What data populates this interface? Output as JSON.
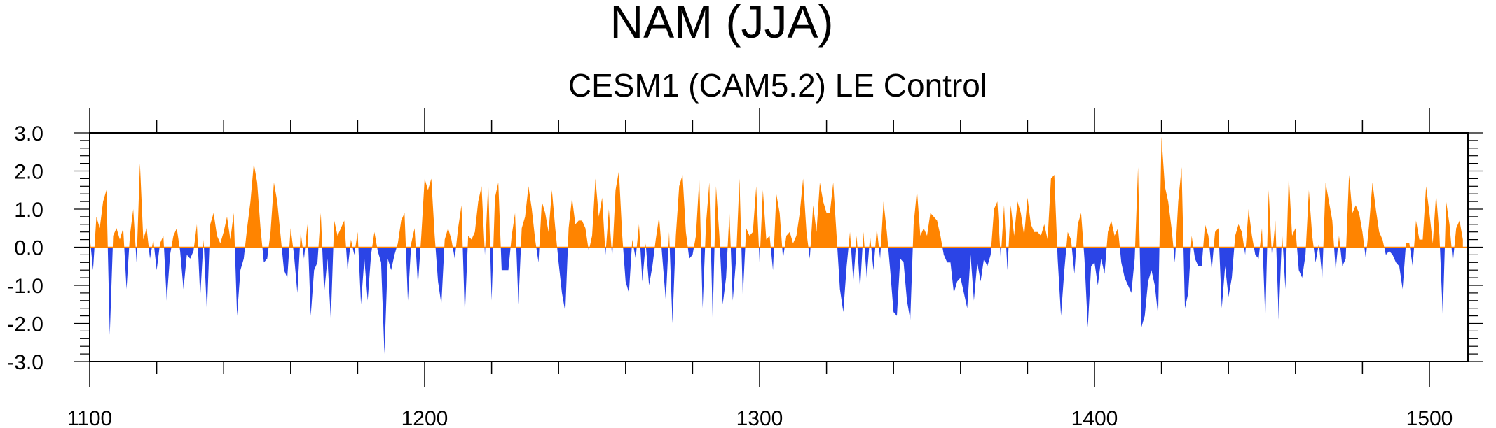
{
  "chart_data": {
    "type": "area",
    "title": "NAM (JJA)",
    "subtitle": "CESM1 (CAM5.2) LE Control",
    "xlabel": "",
    "ylabel": "",
    "xlim": [
      1100,
      1510
    ],
    "ylim": [
      -3.0,
      3.0
    ],
    "x_ticks": [
      "1100",
      "1200",
      "1300",
      "1400",
      "1500"
    ],
    "y_ticks": [
      "3.0",
      "2.0",
      "1.0",
      "0.0",
      "-1.0",
      "-2.0",
      "-3.0"
    ],
    "grid": false,
    "baseline": 0.0,
    "colors": {
      "positive": "#ff8400",
      "negative": "#2b44e6"
    },
    "series": [
      {
        "x_start": 1100,
        "x_step": 1,
        "values": [
          0.3,
          -0.6,
          0.8,
          0.5,
          1.2,
          1.5,
          -2.3,
          0.3,
          0.5,
          0.2,
          0.5,
          -1.1,
          0.3,
          1.0,
          -0.4,
          2.2,
          0.2,
          0.5,
          -0.3,
          0.2,
          -0.6,
          0.1,
          0.3,
          -1.4,
          -0.2,
          0.3,
          0.5,
          -0.1,
          -1.1,
          -0.2,
          -0.3,
          -0.1,
          0.6,
          -1.3,
          0.2,
          -1.7,
          0.6,
          0.9,
          0.3,
          0.1,
          0.4,
          0.8,
          0.2,
          0.9,
          -1.8,
          -0.6,
          -0.3,
          0.5,
          1.2,
          2.2,
          1.7,
          0.5,
          -0.4,
          -0.3,
          0.4,
          1.7,
          1.2,
          0.3,
          -0.6,
          -0.8,
          0.5,
          -0.2,
          -1.2,
          0.4,
          -0.3,
          0.6,
          -1.8,
          -0.6,
          -0.4,
          0.9,
          -1.2,
          -0.3,
          -1.9,
          0.7,
          0.3,
          0.5,
          0.7,
          -0.6,
          0.2,
          -0.2,
          0.4,
          -1.5,
          -0.3,
          -1.4,
          -0.2,
          0.4,
          -0.1,
          -0.4,
          -2.8,
          -0.3,
          -0.6,
          -0.2,
          0.1,
          0.7,
          0.9,
          -1.4,
          0.1,
          0.5,
          -1.0,
          0.3,
          1.8,
          1.5,
          1.8,
          0.3,
          -0.9,
          -1.5,
          0.2,
          0.5,
          0.2,
          -0.3,
          0.5,
          1.1,
          -1.8,
          0.3,
          0.2,
          0.4,
          1.2,
          1.6,
          -0.2,
          1.7,
          -1.4,
          1.3,
          1.7,
          -0.6,
          -0.6,
          -0.6,
          0.3,
          0.9,
          -1.5,
          0.5,
          0.8,
          1.6,
          1.0,
          0.2,
          -0.4,
          1.2,
          0.9,
          0.4,
          1.5,
          0.5,
          -0.4,
          -1.2,
          -1.7,
          0.5,
          1.3,
          0.6,
          0.7,
          0.7,
          0.5,
          -0.1,
          0.3,
          1.8,
          0.8,
          1.3,
          -0.2,
          1.0,
          -0.3,
          1.5,
          2.0,
          0.3,
          -0.9,
          -1.2,
          0.2,
          -0.3,
          0.6,
          -0.9,
          0.1,
          -1.0,
          -0.5,
          0.2,
          0.8,
          -0.3,
          -1.4,
          0.4,
          -2.0,
          0.3,
          1.6,
          1.9,
          0.4,
          -0.3,
          -0.2,
          0.3,
          1.8,
          -1.6,
          0.6,
          1.7,
          -1.9,
          1.6,
          0.3,
          -1.5,
          -0.8,
          0.9,
          -1.4,
          -0.3,
          1.8,
          -1.3,
          0.5,
          0.3,
          0.4,
          1.6,
          -0.4,
          1.5,
          0.2,
          0.3,
          -0.6,
          1.4,
          0.9,
          -0.3,
          0.3,
          0.4,
          0.1,
          0.3,
          0.9,
          1.8,
          0.4,
          -0.3,
          1.1,
          0.4,
          1.7,
          1.2,
          0.9,
          0.9,
          1.7,
          0.3,
          -1.1,
          -1.7,
          -0.5,
          0.4,
          -0.9,
          0.3,
          -1.1,
          0.4,
          -0.8,
          0.3,
          -0.6,
          0.5,
          -0.3,
          1.2,
          0.4,
          -0.6,
          -1.7,
          -1.8,
          -0.3,
          -0.4,
          -1.4,
          -1.9,
          0.6,
          1.5,
          0.3,
          0.5,
          0.3,
          0.9,
          0.8,
          0.7,
          0.3,
          -0.2,
          -0.4,
          -0.4,
          -1.2,
          -0.9,
          -0.8,
          -1.2,
          -1.6,
          -0.2,
          -1.4,
          -0.4,
          -0.9,
          -0.3,
          -0.5,
          -0.2,
          1.0,
          1.2,
          -0.3,
          1.1,
          -0.6,
          1.1,
          0.3,
          1.2,
          0.9,
          0.3,
          1.3,
          0.6,
          0.4,
          0.4,
          0.3,
          0.6,
          0.2,
          1.8,
          1.9,
          -0.3,
          -1.8,
          -0.6,
          0.4,
          0.2,
          -0.7,
          0.6,
          0.9,
          -0.3,
          -2.1,
          -0.5,
          -0.4,
          -1.0,
          -0.3,
          -0.7,
          0.4,
          0.7,
          0.3,
          0.5,
          -0.4,
          -0.8,
          -1.0,
          -1.2,
          -0.3,
          2.1,
          -2.1,
          -1.8,
          -0.9,
          -0.6,
          -1.0,
          -1.8,
          2.9,
          1.6,
          1.2,
          0.5,
          -0.4,
          1.2,
          2.1,
          -1.6,
          -1.2,
          0.3,
          -0.3,
          -0.5,
          -0.5,
          0.6,
          0.3,
          -0.6,
          0.4,
          0.5,
          -1.6,
          -0.5,
          -1.3,
          -0.8,
          0.3,
          0.6,
          0.4,
          -0.2,
          1.0,
          0.3,
          -0.2,
          -0.3,
          0.5,
          -1.9,
          1.5,
          -0.3,
          0.7,
          -1.9,
          0.4,
          -1.1,
          1.9,
          0.3,
          0.5,
          -0.6,
          -0.8,
          -0.2,
          1.5,
          0.3,
          -0.4,
          0.1,
          -0.8,
          1.7,
          1.2,
          0.7,
          -0.6,
          0.3,
          -0.5,
          -0.3,
          1.9,
          0.9,
          1.1,
          0.9,
          0.4,
          -0.3,
          0.6,
          1.7,
          1.0,
          0.4,
          0.2,
          -0.2,
          -0.1,
          -0.2,
          -0.4,
          -0.5,
          -1.1,
          0.1,
          0.1,
          -0.5,
          0.7,
          0.2,
          0.2,
          1.6,
          0.9,
          0.1,
          1.4,
          0.3,
          -1.8,
          1.2,
          0.6,
          -0.4,
          0.5,
          0.7,
          0.2
        ]
      }
    ]
  }
}
